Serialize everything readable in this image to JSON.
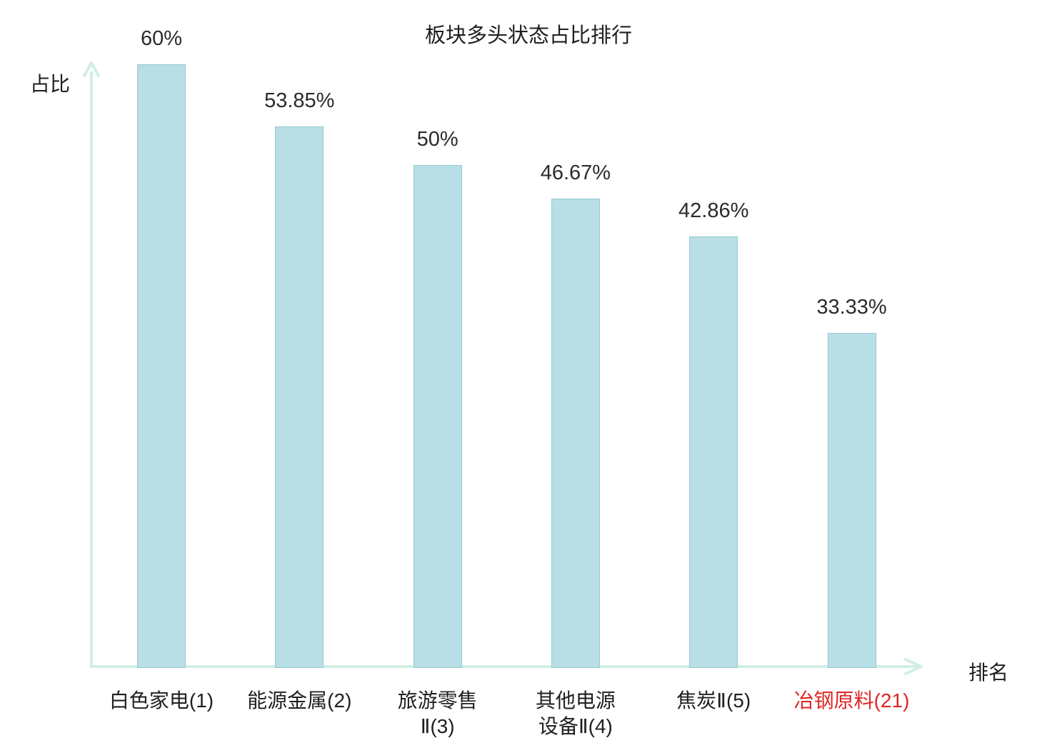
{
  "chart_data": {
    "type": "bar",
    "title": "板块多头状态占比排行",
    "ylabel": "占比",
    "xlabel": "排名",
    "categories": [
      "白色家电(1)",
      "能源金属(2)",
      "旅游零售\nⅡ(3)",
      "其他电源\n设备Ⅱ(4)",
      "焦炭Ⅱ(5)",
      "冶钢原料(21)"
    ],
    "values": [
      60,
      53.85,
      50,
      46.67,
      42.86,
      33.33
    ],
    "value_labels": [
      "60%",
      "53.85%",
      "50%",
      "46.67%",
      "42.86%",
      "33.33%"
    ],
    "highlight_index": 5,
    "highlight_color": "#e02525",
    "bar_fill": "#b9dfe6",
    "bar_border": "#96c9d2",
    "axis_color": "#d2eee3",
    "ylim": [
      0,
      60
    ],
    "grid": false,
    "legend": "none"
  }
}
